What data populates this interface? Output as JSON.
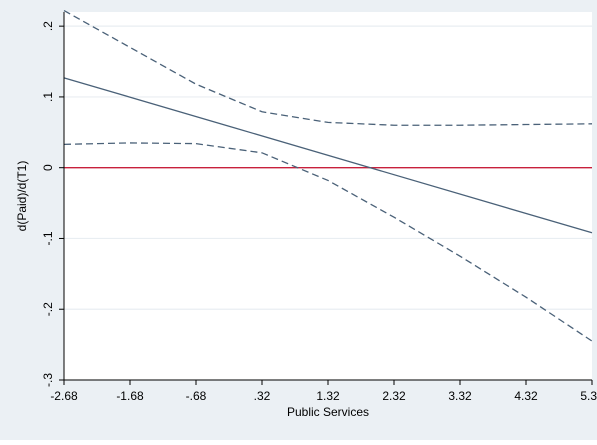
{
  "chart_data": {
    "type": "line",
    "title": "",
    "xlabel": "Public Services",
    "ylabel": "d(Paid)/d(T1)",
    "xlim": [
      -2.68,
      5.32
    ],
    "ylim": [
      -0.3,
      0.22
    ],
    "x_ticks": [
      -2.68,
      -1.68,
      -0.68,
      0.32,
      1.32,
      2.32,
      3.32,
      4.32,
      5.32
    ],
    "x_tick_labels": [
      "-2.68",
      "-1.68",
      "-.68",
      ".32",
      "1.32",
      "2.32",
      "3.32",
      "4.32",
      "5.32"
    ],
    "y_ticks": [
      -0.3,
      -0.2,
      -0.1,
      0,
      0.1,
      0.2
    ],
    "y_tick_labels": [
      "-.3",
      "-.2",
      "-.1",
      "0",
      ".1",
      ".2"
    ],
    "grid": true,
    "reference_line": {
      "y": 0,
      "color": "#c8203c"
    },
    "series": [
      {
        "style": "solid",
        "color": "#4a6178",
        "x": [
          -2.68,
          5.32
        ],
        "y": [
          0.127,
          -0.092
        ]
      },
      {
        "style": "dashed",
        "color": "#4a6178",
        "x": [
          -2.68,
          -1.68,
          -0.68,
          0.32,
          1.32,
          2.32,
          3.32,
          4.32,
          5.32
        ],
        "y": [
          0.222,
          0.17,
          0.118,
          0.079,
          0.064,
          0.06,
          0.06,
          0.061,
          0.062
        ]
      },
      {
        "style": "dashed",
        "color": "#4a6178",
        "x": [
          -2.68,
          -1.68,
          -0.68,
          0.32,
          1.32,
          2.32,
          3.32,
          4.32,
          5.32
        ],
        "y": [
          0.033,
          0.035,
          0.034,
          0.021,
          -0.018,
          -0.07,
          -0.125,
          -0.183,
          -0.245
        ]
      }
    ],
    "colors": {
      "outer_background": "#ebf0f4",
      "plot_background": "#ffffff",
      "gridline": "#e9eef2",
      "axis": "#000000"
    }
  }
}
